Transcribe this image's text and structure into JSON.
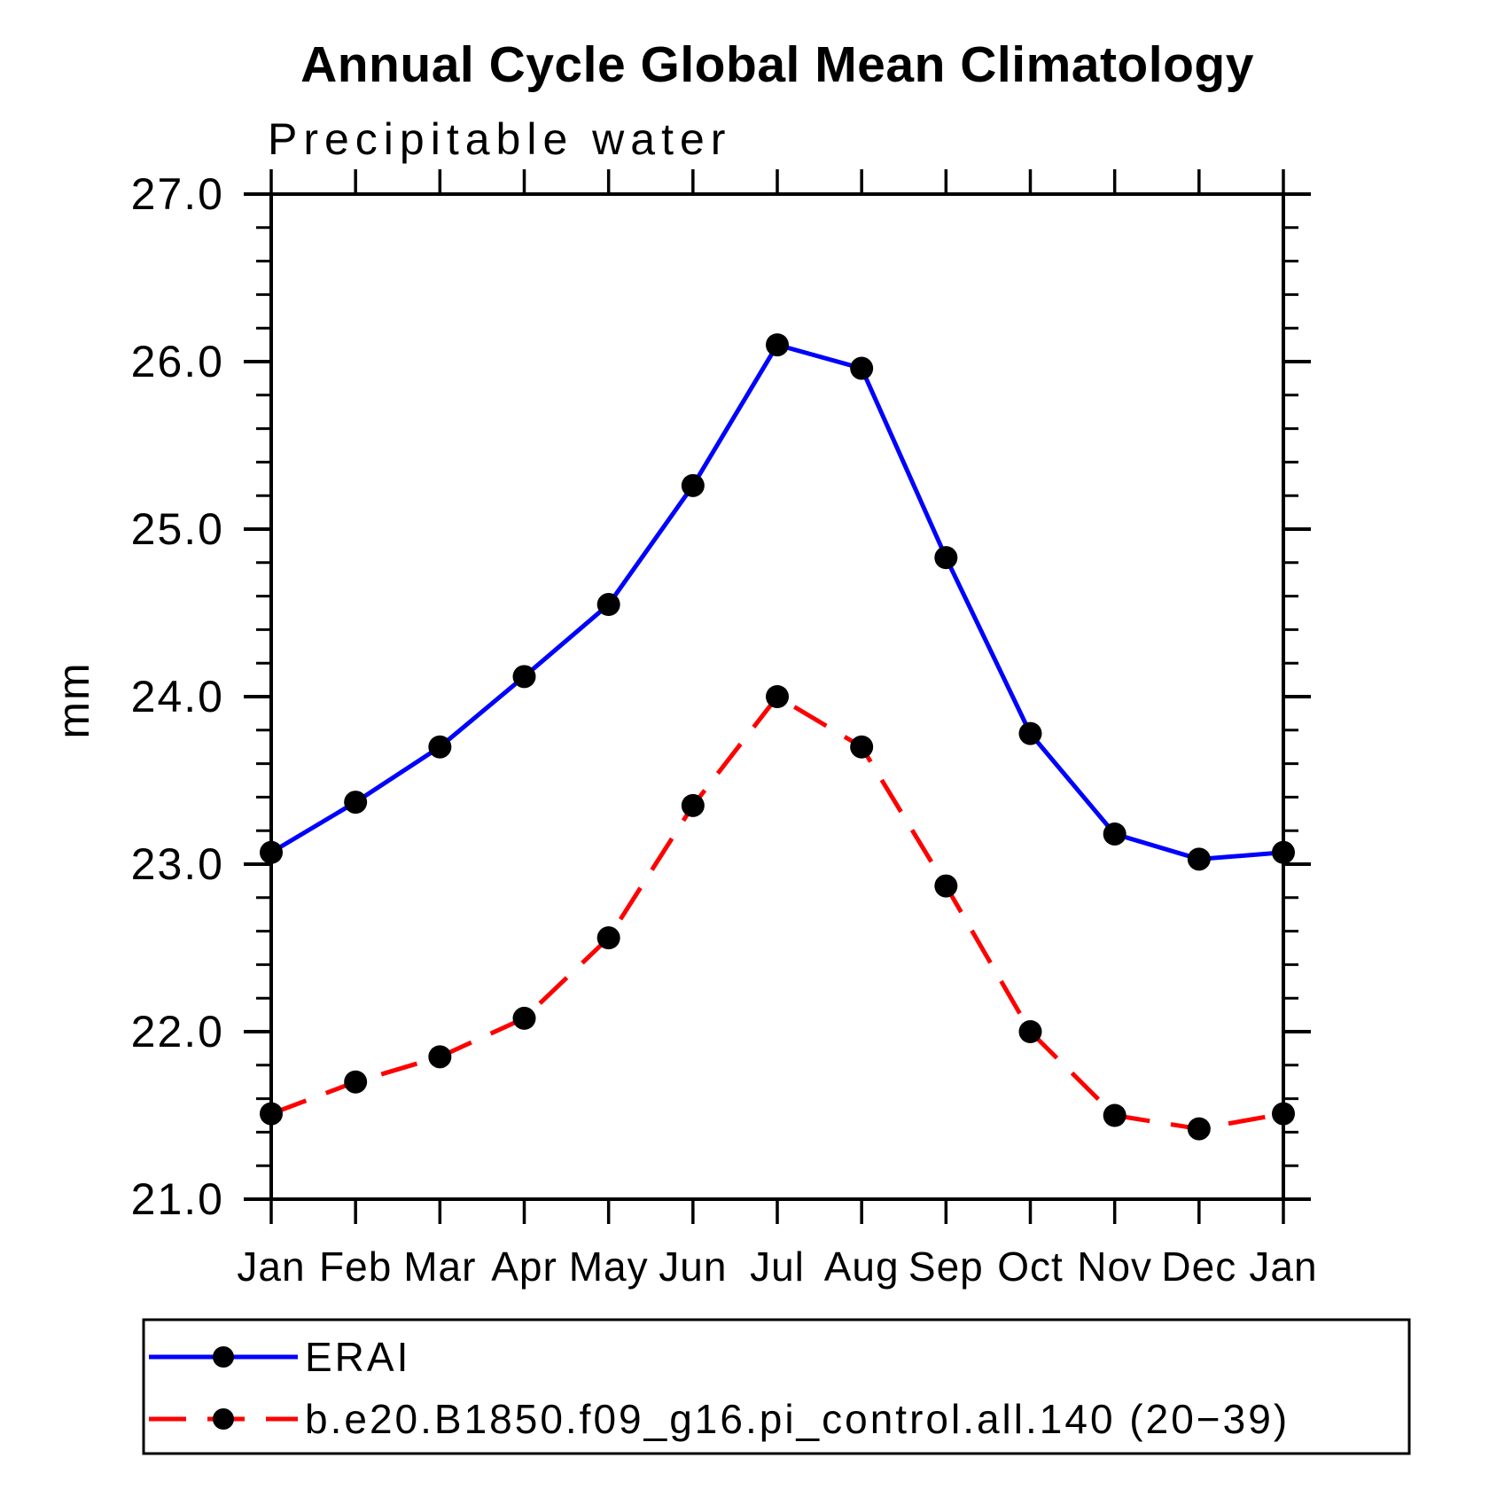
{
  "chart_data": {
    "type": "line",
    "title": "Annual Cycle Global Mean Climatology",
    "subtitle": "Precipitable water",
    "ylabel": "mm",
    "xlabel": "",
    "categories": [
      "Jan",
      "Feb",
      "Mar",
      "Apr",
      "May",
      "Jun",
      "Jul",
      "Aug",
      "Sep",
      "Oct",
      "Nov",
      "Dec",
      "Jan"
    ],
    "ylim": [
      21.0,
      27.0
    ],
    "y_major_step": 1.0,
    "y_minor_step": 0.2,
    "y_tick_labels": [
      "21.0",
      "22.0",
      "23.0",
      "24.0",
      "25.0",
      "26.0",
      "27.0"
    ],
    "grid": false,
    "frame": "box-with-outward-ticks",
    "legend_position": "bottom-left-box",
    "axis_color": "#000000",
    "series": [
      {
        "name": "ERAI",
        "color": "#0000ff",
        "line_style": "solid",
        "marker": "filled-circle",
        "marker_color": "#000000",
        "values": [
          23.07,
          23.37,
          23.7,
          24.12,
          24.55,
          25.26,
          26.1,
          25.96,
          24.83,
          23.78,
          23.18,
          23.03,
          23.07
        ]
      },
      {
        "name": "b.e20.B1850.f09_g16.pi_control.all.140 (20−39)",
        "color": "#ff0000",
        "line_style": "dashed",
        "marker": "filled-circle",
        "marker_color": "#000000",
        "values": [
          21.51,
          21.7,
          21.85,
          22.08,
          22.56,
          23.35,
          24.0,
          23.7,
          22.87,
          22.0,
          21.5,
          21.42,
          21.51
        ]
      }
    ]
  }
}
